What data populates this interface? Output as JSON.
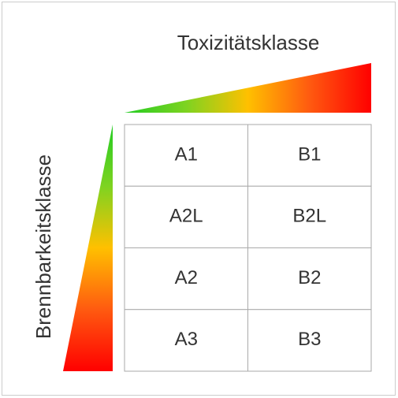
{
  "header": {
    "x_axis": "Toxizitätsklasse",
    "y_axis": "Brennbarkeitsklasse"
  },
  "table": {
    "rows": [
      [
        "A1",
        "B1"
      ],
      [
        "A2L",
        "B2L"
      ],
      [
        "A2",
        "B2"
      ],
      [
        "A3",
        "B3"
      ]
    ]
  }
}
